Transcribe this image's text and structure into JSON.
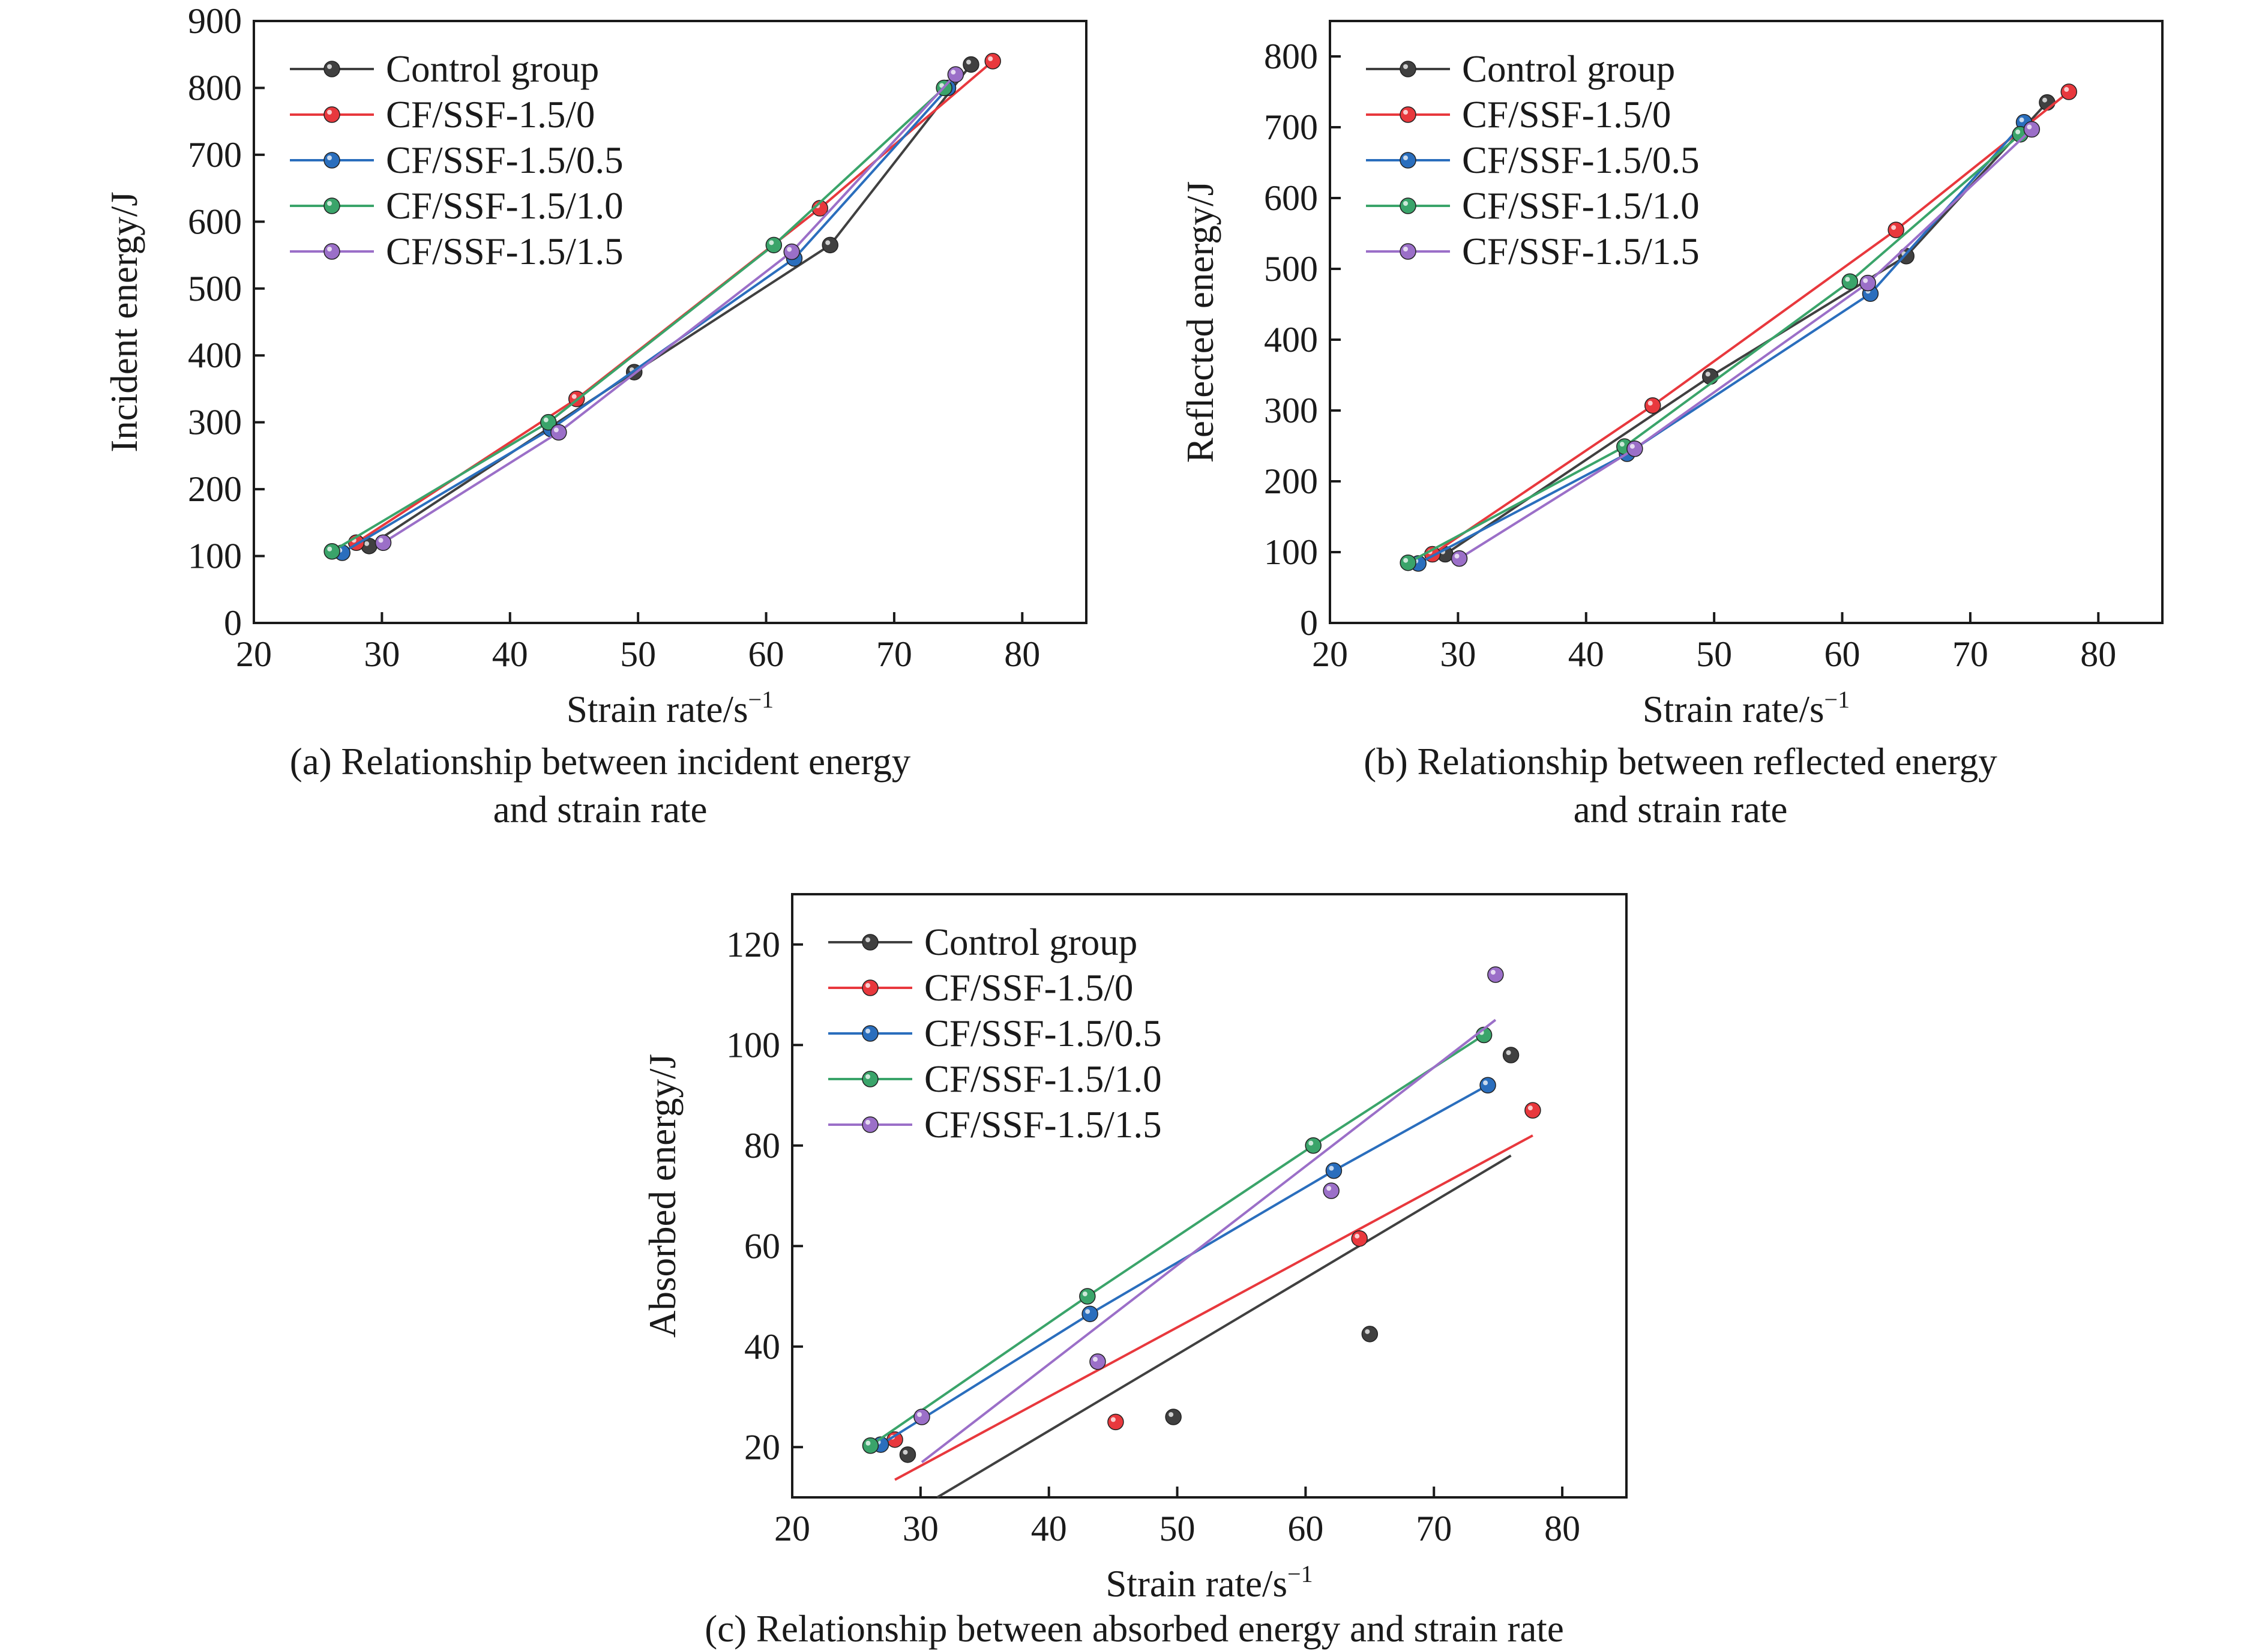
{
  "legend_labels": [
    "Control group",
    "CF/SSF-1.5/0",
    "CF/SSF-1.5/0.5",
    "CF/SSF-1.5/1.0",
    "CF/SSF-1.5/1.5"
  ],
  "colors": {
    "control": "#404040",
    "cf_0": "#e8383d",
    "cf_05": "#2a6ebd",
    "cf_10": "#3aa46a",
    "cf_15": "#9b6fc8"
  },
  "chart_data": [
    {
      "type": "line",
      "id": "a",
      "caption_lines": [
        "(a) Relationship between incident energy",
        "and strain rate"
      ],
      "xlabel": "Strain rate/s",
      "xlabel_sup": "−1",
      "ylabel": "Incident energy/J",
      "xlim": [
        20,
        85
      ],
      "ylim": [
        0,
        900
      ],
      "xticks": [
        20,
        30,
        40,
        50,
        60,
        70,
        80
      ],
      "yticks": [
        0,
        100,
        200,
        300,
        400,
        500,
        600,
        700,
        800,
        900
      ],
      "legend_position": "top-left",
      "series": [
        {
          "name": "Control group",
          "x": [
            29,
            49.7,
            65,
            76
          ],
          "y": [
            115,
            375,
            565,
            835
          ]
        },
        {
          "name": "CF/SSF-1.5/0",
          "x": [
            28,
            45.2,
            64.2,
            77.7
          ],
          "y": [
            120,
            335,
            620,
            840
          ]
        },
        {
          "name": "CF/SSF-1.5/0.5",
          "x": [
            26.9,
            43.2,
            62.2,
            74.2
          ],
          "y": [
            105,
            290,
            545,
            800
          ]
        },
        {
          "name": "CF/SSF-1.5/1.0",
          "x": [
            26.1,
            43,
            60.6,
            73.9
          ],
          "y": [
            107,
            300,
            565,
            800
          ]
        },
        {
          "name": "CF/SSF-1.5/1.5",
          "x": [
            30.1,
            43.8,
            62,
            74.8
          ],
          "y": [
            120,
            285,
            555,
            820
          ]
        }
      ]
    },
    {
      "type": "line",
      "id": "b",
      "caption_lines": [
        "(b) Relationship between reflected energy",
        "and strain rate"
      ],
      "xlabel": "Strain rate/s",
      "xlabel_sup": "−1",
      "ylabel": "Reflected energy/J",
      "xlim": [
        20,
        85
      ],
      "ylim": [
        0,
        850
      ],
      "xticks": [
        20,
        30,
        40,
        50,
        60,
        70,
        80
      ],
      "yticks": [
        0,
        100,
        200,
        300,
        400,
        500,
        600,
        700,
        800
      ],
      "legend_position": "top-left",
      "series": [
        {
          "name": "Control group",
          "x": [
            29,
            49.7,
            65,
            76
          ],
          "y": [
            97,
            348,
            518,
            735
          ]
        },
        {
          "name": "CF/SSF-1.5/0",
          "x": [
            28,
            45.2,
            64.2,
            77.7
          ],
          "y": [
            97,
            307,
            555,
            750
          ]
        },
        {
          "name": "CF/SSF-1.5/0.5",
          "x": [
            26.9,
            43.2,
            62.2,
            74.2
          ],
          "y": [
            84,
            239,
            465,
            707
          ]
        },
        {
          "name": "CF/SSF-1.5/1.0",
          "x": [
            26.1,
            43,
            60.6,
            73.9
          ],
          "y": [
            85,
            249,
            482,
            690
          ]
        },
        {
          "name": "CF/SSF-1.5/1.5",
          "x": [
            30.1,
            43.8,
            62,
            74.8
          ],
          "y": [
            91,
            246,
            480,
            697
          ]
        }
      ]
    },
    {
      "type": "scatter",
      "id": "c",
      "caption_lines": [
        "(c) Relationship between absorbed energy and strain rate"
      ],
      "xlabel": "Strain rate/s",
      "xlabel_sup": "−1",
      "ylabel": "Absorbed energy/J",
      "xlim": [
        20,
        85
      ],
      "ylim": [
        10,
        130
      ],
      "xticks": [
        20,
        30,
        40,
        50,
        60,
        70,
        80
      ],
      "yticks": [
        20,
        40,
        60,
        80,
        100,
        120
      ],
      "legend_position": "top-left",
      "series": [
        {
          "name": "Control group",
          "x": [
            29,
            49.7,
            65,
            76
          ],
          "y": [
            18.5,
            26,
            42.5,
            98
          ],
          "fit": [
            [
              31.3,
              10
            ],
            [
              76,
              78
            ]
          ]
        },
        {
          "name": "CF/SSF-1.5/0",
          "x": [
            28,
            45.2,
            64.2,
            77.7
          ],
          "y": [
            21.5,
            25,
            61.5,
            87
          ],
          "fit": [
            [
              28,
              13.5
            ],
            [
              77.7,
              82
            ]
          ]
        },
        {
          "name": "CF/SSF-1.5/0.5",
          "x": [
            26.9,
            43.2,
            62.2,
            74.2
          ],
          "y": [
            20.5,
            46.5,
            75,
            92
          ],
          "fit": [
            [
              26.9,
              20.5
            ],
            [
              43.2,
              46.5
            ],
            [
              62.2,
              75
            ],
            [
              74.2,
              92
            ]
          ]
        },
        {
          "name": "CF/SSF-1.5/1.0",
          "x": [
            26.1,
            43,
            60.6,
            73.9
          ],
          "y": [
            20.3,
            50,
            80,
            102
          ],
          "fit": [
            [
              26.1,
              20.3
            ],
            [
              43,
              50
            ],
            [
              60.6,
              80
            ],
            [
              73.9,
              102
            ]
          ]
        },
        {
          "name": "CF/SSF-1.5/1.5",
          "x": [
            30.1,
            43.8,
            62,
            74.8
          ],
          "y": [
            26,
            37,
            71,
            114
          ],
          "fit": [
            [
              30.1,
              17
            ],
            [
              74.8,
              105
            ]
          ]
        }
      ]
    }
  ]
}
